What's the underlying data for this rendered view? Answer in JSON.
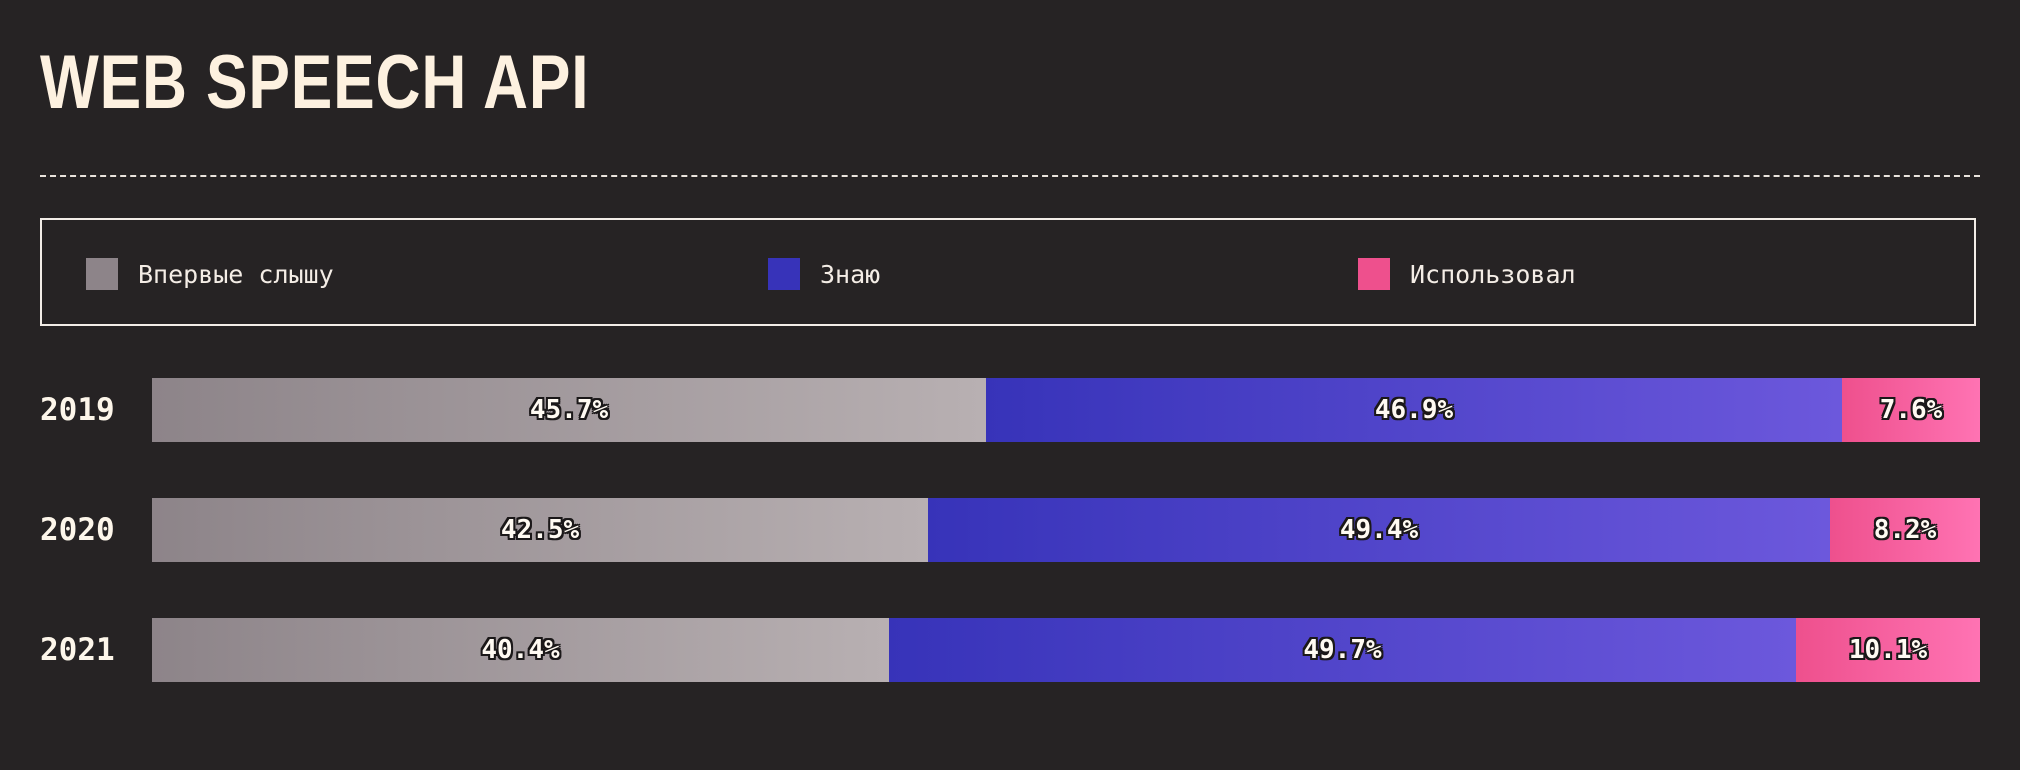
{
  "title": "WEB SPEECH API",
  "legend": [
    {
      "label": "Впервые слышу",
      "color": "#8d8489"
    },
    {
      "label": "Знаю",
      "color": "#3733b9"
    },
    {
      "label": "Использовал",
      "color": "#ee508d"
    }
  ],
  "chart_data": {
    "type": "bar",
    "orientation": "horizontal",
    "stacked": true,
    "title": "WEB SPEECH API",
    "categories": [
      "2019",
      "2020",
      "2021"
    ],
    "series": [
      {
        "name": "Впервые слышу",
        "values": [
          45.7,
          42.5,
          40.4
        ],
        "labels": [
          "45.7%",
          "42.5%",
          "40.4%"
        ],
        "gradient": [
          "#8d8489",
          "#b8b0b2"
        ]
      },
      {
        "name": "Знаю",
        "values": [
          46.9,
          49.4,
          49.7
        ],
        "labels": [
          "46.9%",
          "49.4%",
          "49.7%"
        ],
        "gradient": [
          "#3733b9",
          "#6c58dc"
        ]
      },
      {
        "name": "Использовал",
        "values": [
          7.6,
          8.2,
          10.1
        ],
        "labels": [
          "7.6%",
          "8.2%",
          "10.1%"
        ],
        "gradient": [
          "#ee508d",
          "#ff73b3"
        ]
      }
    ],
    "xlim": [
      0,
      100
    ],
    "legend_position": "top",
    "grid": false
  }
}
